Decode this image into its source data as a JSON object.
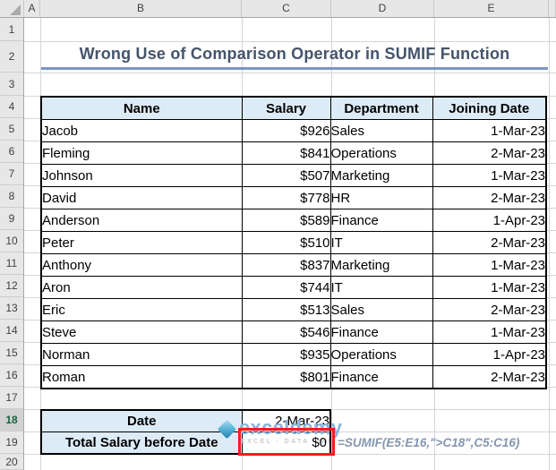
{
  "title": "Wrong Use of Comparison Operator in SUMIF Function",
  "columns": [
    "A",
    "B",
    "C",
    "D",
    "E",
    ""
  ],
  "row_numbers": [
    "1",
    "2",
    "3",
    "4",
    "5",
    "6",
    "7",
    "8",
    "9",
    "10",
    "11",
    "12",
    "13",
    "14",
    "15",
    "16",
    "17",
    "18",
    "19",
    "20"
  ],
  "selected_row": "18",
  "table": {
    "headers": [
      "Name",
      "Salary",
      "Department",
      "Joining Date"
    ],
    "rows": [
      {
        "name": "Jacob",
        "salary": "$926",
        "department": "Sales",
        "joining_date": "1-Mar-23"
      },
      {
        "name": "Fleming",
        "salary": "$841",
        "department": "Operations",
        "joining_date": "2-Mar-23"
      },
      {
        "name": "Johnson",
        "salary": "$507",
        "department": "Marketing",
        "joining_date": "1-Mar-23"
      },
      {
        "name": "David",
        "salary": "$778",
        "department": "HR",
        "joining_date": "2-Mar-23"
      },
      {
        "name": "Anderson",
        "salary": "$589",
        "department": "Finance",
        "joining_date": "1-Apr-23"
      },
      {
        "name": "Peter",
        "salary": "$510",
        "department": "IT",
        "joining_date": "2-Mar-23"
      },
      {
        "name": "Anthony",
        "salary": "$837",
        "department": "Marketing",
        "joining_date": "1-Mar-23"
      },
      {
        "name": "Aron",
        "salary": "$744",
        "department": "IT",
        "joining_date": "1-Mar-23"
      },
      {
        "name": "Eric",
        "salary": "$513",
        "department": "Sales",
        "joining_date": "2-Mar-23"
      },
      {
        "name": "Steve",
        "salary": "$546",
        "department": "Finance",
        "joining_date": "1-Mar-23"
      },
      {
        "name": "Norman",
        "salary": "$935",
        "department": "Operations",
        "joining_date": "1-Apr-23"
      },
      {
        "name": "Roman",
        "salary": "$801",
        "department": "Finance",
        "joining_date": "2-Mar-23"
      }
    ]
  },
  "summary": {
    "date_label": "Date",
    "date_value": "2-Mar-23",
    "total_label": "Total Salary before Date",
    "total_value": "$0",
    "formula": "=SUMIF(E5:E16,\">C18\",C5:C16)"
  },
  "watermark": {
    "brand": "exceldemy",
    "tagline": "EXCEL · DATA · BI"
  },
  "colors": {
    "header_fill": "#DDEBF7",
    "title_text": "#44546A",
    "title_underline": "#7B96C6",
    "highlight_border": "#FF1A1A",
    "selected_row_accent": "#217346",
    "formula_text": "#8496B0",
    "watermark_brand": "#85B4E0"
  }
}
